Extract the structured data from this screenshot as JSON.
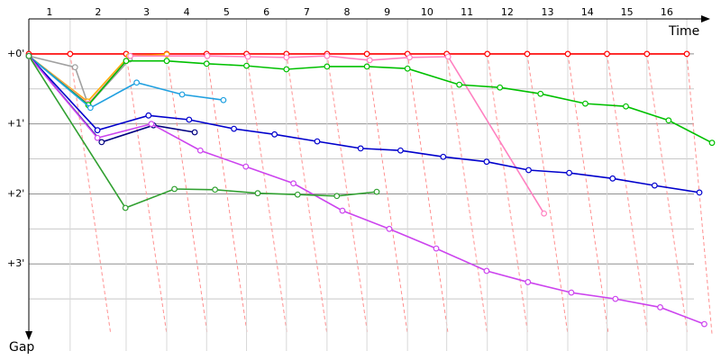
{
  "chart_data": {
    "type": "line",
    "x_label": "Time",
    "y_label": "Gap",
    "categories": [
      "1",
      "2",
      "3",
      "4",
      "5",
      "6",
      "7",
      "8",
      "9",
      "10",
      "11",
      "12",
      "13",
      "14",
      "15",
      "16"
    ],
    "xlim": [
      0,
      9.85
    ],
    "xticks": [
      0,
      0.59,
      1.39,
      1.97,
      2.54,
      3.11,
      3.68,
      4.26,
      4.83,
      5.41,
      5.97,
      6.55,
      7.12,
      7.7,
      8.26,
      8.83,
      9.4
    ],
    "ylim": [
      -0.5,
      4
    ],
    "yticks": [
      {
        "value": 0,
        "label": "+0'"
      },
      {
        "value": 1,
        "label": "+1'"
      },
      {
        "value": 2,
        "label": "+2'"
      },
      {
        "value": 3,
        "label": "+3'"
      }
    ],
    "minor_yticks": [
      0.5,
      1.5,
      2.5,
      3.5
    ],
    "grid": true,
    "series": [
      {
        "color": "#ff0000",
        "x": [
          0,
          0.59,
          1.39,
          1.97,
          2.54,
          3.11,
          3.68,
          4.26,
          4.83,
          5.41,
          5.97,
          6.55,
          7.12,
          7.7,
          8.26,
          8.83,
          9.4
        ],
        "values": [
          0,
          0,
          0,
          0,
          0,
          0,
          0,
          0,
          0,
          0,
          0,
          0,
          0,
          0,
          0,
          0,
          0
        ]
      },
      {
        "color": "#a0a0a0",
        "x": [
          0,
          0.66,
          0.85,
          1.44
        ],
        "values": [
          0.03,
          0.19,
          0.73,
          0.08
        ]
      },
      {
        "color": "#ffb000",
        "x": [
          0,
          0.84,
          1.43,
          1.97
        ],
        "values": [
          0.03,
          0.68,
          0.03,
          0.01
        ]
      },
      {
        "color": "#ff80c0",
        "x": [
          0,
          0.85,
          1.45,
          2.55,
          3.13,
          3.68,
          4.26,
          4.87,
          5.44,
          5.99,
          7.36
        ],
        "values": [
          0.03,
          0.71,
          0.03,
          0.03,
          0.04,
          0.05,
          0.03,
          0.09,
          0.05,
          0.04,
          2.28
        ]
      },
      {
        "color": "#00c000",
        "x": [
          0,
          0.85,
          1.39,
          1.97,
          2.54,
          3.11,
          3.68,
          4.26,
          4.83,
          5.41,
          6.15,
          6.73,
          7.31,
          7.95,
          8.53,
          9.14,
          9.76
        ],
        "values": [
          0.03,
          0.73,
          0.1,
          0.1,
          0.14,
          0.17,
          0.22,
          0.18,
          0.18,
          0.21,
          0.44,
          0.48,
          0.57,
          0.71,
          0.75,
          0.95,
          1.27
        ]
      },
      {
        "color": "#20a0e0",
        "x": [
          0,
          0.88,
          1.54,
          2.19,
          2.78
        ],
        "values": [
          0.03,
          0.77,
          0.41,
          0.58,
          0.66
        ]
      },
      {
        "color": "#0000cc",
        "x": [
          0,
          0.98,
          1.71,
          2.29,
          2.93,
          3.51,
          4.12,
          4.74,
          5.31,
          5.92,
          6.54,
          7.14,
          7.72,
          8.34,
          8.94,
          9.58
        ],
        "values": [
          0.03,
          1.09,
          0.88,
          0.94,
          1.07,
          1.15,
          1.25,
          1.35,
          1.38,
          1.47,
          1.54,
          1.66,
          1.7,
          1.78,
          1.88,
          1.98
        ]
      },
      {
        "color": "#000080",
        "x": [
          0,
          1.04,
          1.78,
          2.37
        ],
        "values": [
          0.03,
          1.26,
          1.02,
          1.12
        ]
      },
      {
        "color": "#cc44ee",
        "x": [
          0,
          0.98,
          1.75,
          2.45,
          3.1,
          3.78,
          4.48,
          5.15,
          5.82,
          6.54,
          7.13,
          7.75,
          8.38,
          9.02,
          9.65
        ],
        "values": [
          0.03,
          1.2,
          1.0,
          1.38,
          1.61,
          1.85,
          2.24,
          2.5,
          2.78,
          3.1,
          3.26,
          3.41,
          3.5,
          3.62,
          3.86
        ]
      },
      {
        "color": "#30a030",
        "x": [
          0,
          1.38,
          2.08,
          2.66,
          3.27,
          3.84,
          4.4,
          4.97
        ],
        "values": [
          0.03,
          2.2,
          1.93,
          1.94,
          1.99,
          2.01,
          2.03,
          1.97
        ]
      }
    ]
  }
}
